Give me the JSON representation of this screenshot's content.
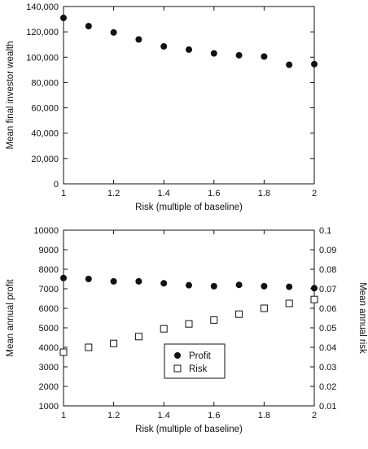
{
  "chart_data": [
    {
      "type": "scatter",
      "title": "",
      "xlabel": "Risk (multiple of baseline)",
      "ylabel": "Mean final investor wealth",
      "xlim": [
        1,
        2
      ],
      "ylim": [
        0,
        140000
      ],
      "x_ticks": [
        "1",
        "1.2",
        "1.4",
        "1.6",
        "1.8",
        "2"
      ],
      "y_ticks": [
        "0",
        "20,000",
        "40,000",
        "60,000",
        "80,000",
        "100,000",
        "120,000",
        "140,000"
      ],
      "grid": false,
      "series": [
        {
          "marker": "filled-circle",
          "x": [
            1.0,
            1.1,
            1.2,
            1.3,
            1.4,
            1.5,
            1.6,
            1.7,
            1.8,
            1.9,
            2.0
          ],
          "y": [
            131000,
            124500,
            119500,
            114000,
            108500,
            106000,
            103000,
            101500,
            100500,
            94000,
            94500
          ]
        }
      ]
    },
    {
      "type": "scatter",
      "title": "",
      "xlabel": "Risk (multiple of baseline)",
      "ylabel": "Mean annual profit",
      "y2label": "Mean annual risk",
      "xlim": [
        1,
        2
      ],
      "ylim": [
        1000,
        10000
      ],
      "y2lim": [
        0.01,
        0.1
      ],
      "x_ticks": [
        "1",
        "1.2",
        "1.4",
        "1.6",
        "1.8",
        "2"
      ],
      "y_ticks": [
        "1000",
        "2000",
        "3000",
        "4000",
        "5000",
        "6000",
        "7000",
        "8000",
        "9000",
        "10000"
      ],
      "y2_ticks": [
        "0.01",
        "0.02",
        "0.03",
        "0.04",
        "0.05",
        "0.06",
        "0.07",
        "0.08",
        "0.09",
        "0.1"
      ],
      "grid": false,
      "legend_position": "center",
      "series": [
        {
          "name": "Profit",
          "marker": "filled-circle",
          "axis": "left",
          "x": [
            1.0,
            1.1,
            1.2,
            1.3,
            1.4,
            1.5,
            1.6,
            1.7,
            1.8,
            1.9,
            2.0
          ],
          "y": [
            7550,
            7500,
            7380,
            7380,
            7280,
            7180,
            7130,
            7200,
            7130,
            7100,
            7030
          ]
        },
        {
          "name": "Risk",
          "marker": "open-square",
          "axis": "right",
          "x": [
            1.0,
            1.1,
            1.2,
            1.3,
            1.4,
            1.5,
            1.6,
            1.7,
            1.8,
            1.9,
            2.0
          ],
          "y": [
            0.0375,
            0.04,
            0.042,
            0.0455,
            0.0495,
            0.052,
            0.054,
            0.057,
            0.06,
            0.0625,
            0.0645
          ]
        }
      ]
    }
  ]
}
